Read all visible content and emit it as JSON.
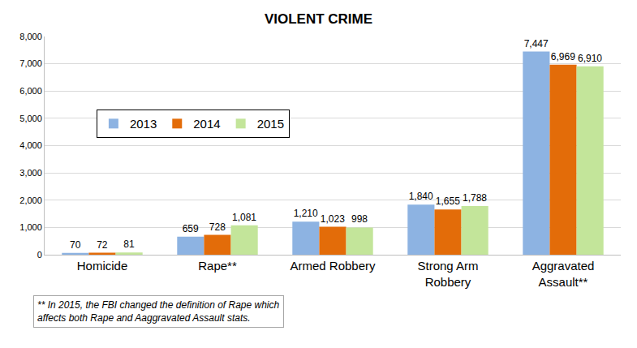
{
  "chart_data": {
    "type": "bar",
    "title": "VIOLENT CRIME",
    "categories": [
      "Homicide",
      "Rape**",
      "Armed Robbery",
      "Strong Arm Robbery",
      "Aggravated Assault**"
    ],
    "series": [
      {
        "name": "2013",
        "color": "#8db3e2",
        "values": [
          70,
          659,
          1210,
          1840,
          7447
        ],
        "value_labels": [
          "70",
          "659",
          "1,210",
          "1,840",
          "7,447"
        ]
      },
      {
        "name": "2014",
        "color": "#e36c09",
        "values": [
          72,
          728,
          1023,
          1655,
          6969
        ],
        "value_labels": [
          "72",
          "728",
          "1,023",
          "1,655",
          "6,969"
        ]
      },
      {
        "name": "2015",
        "color": "#c3e59a",
        "values": [
          81,
          1081,
          998,
          1788,
          6910
        ],
        "value_labels": [
          "81",
          "1,081",
          "998",
          "1,788",
          "6,910"
        ]
      }
    ],
    "ylim": [
      0,
      8000
    ],
    "yticks": [
      0,
      {
        "value": 1000,
        "label": "1,000"
      },
      {
        "value": 2000,
        "label": "2,000"
      },
      {
        "value": 3000,
        "label": "3,000"
      },
      {
        "value": 4000,
        "label": "4,000"
      },
      {
        "value": 5000,
        "label": "5,000"
      },
      {
        "value": 6000,
        "label": "6,000"
      },
      {
        "value": 7000,
        "label": "7,000"
      },
      {
        "value": 8000,
        "label": "8,000"
      }
    ],
    "grid": true,
    "legend": "left",
    "data_labels": true,
    "annotations": [
      "** In 2015, the FBI changed the definition of Rape which affects both Rape and Aaggravated Assault stats."
    ]
  }
}
